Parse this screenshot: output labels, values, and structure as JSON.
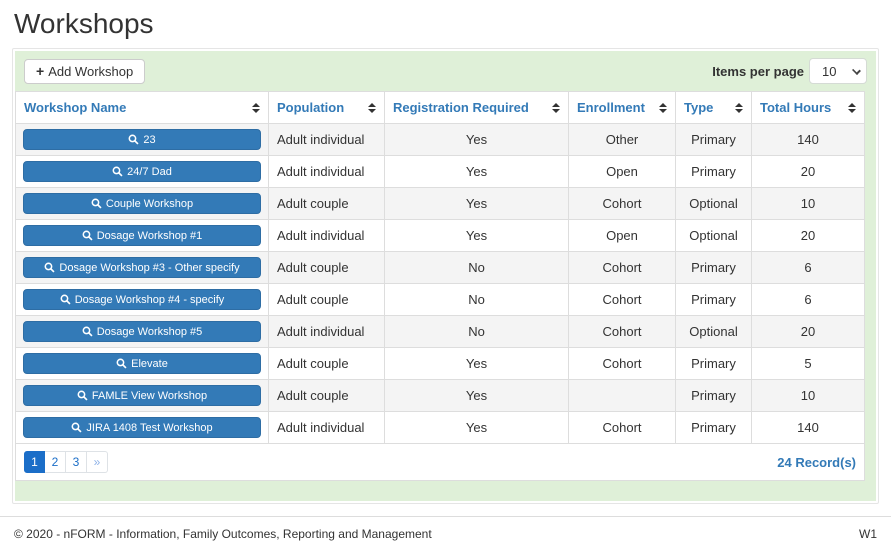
{
  "page": {
    "title": "Workshops"
  },
  "toolbar": {
    "add_button_label": "Add Workshop",
    "items_per_page_label": "Items per page",
    "items_per_page_value": "10"
  },
  "table": {
    "columns": [
      "Workshop Name",
      "Population",
      "Registration Required",
      "Enrollment",
      "Type",
      "Total Hours"
    ],
    "rows": [
      {
        "name": "23",
        "population": "Adult individual",
        "registration": "Yes",
        "enrollment": "Other",
        "type": "Primary",
        "hours": "140"
      },
      {
        "name": "24/7 Dad",
        "population": "Adult individual",
        "registration": "Yes",
        "enrollment": "Open",
        "type": "Primary",
        "hours": "20"
      },
      {
        "name": "Couple Workshop",
        "population": "Adult couple",
        "registration": "Yes",
        "enrollment": "Cohort",
        "type": "Optional",
        "hours": "10"
      },
      {
        "name": "Dosage Workshop #1",
        "population": "Adult individual",
        "registration": "Yes",
        "enrollment": "Open",
        "type": "Optional",
        "hours": "20"
      },
      {
        "name": "Dosage Workshop #3 - Other specify",
        "population": "Adult couple",
        "registration": "No",
        "enrollment": "Cohort",
        "type": "Primary",
        "hours": "6"
      },
      {
        "name": "Dosage Workshop #4 - specify",
        "population": "Adult couple",
        "registration": "No",
        "enrollment": "Cohort",
        "type": "Primary",
        "hours": "6"
      },
      {
        "name": "Dosage Workshop #5",
        "population": "Adult individual",
        "registration": "No",
        "enrollment": "Cohort",
        "type": "Optional",
        "hours": "20"
      },
      {
        "name": "Elevate",
        "population": "Adult couple",
        "registration": "Yes",
        "enrollment": "Cohort",
        "type": "Primary",
        "hours": "5"
      },
      {
        "name": "FAMLE View Workshop",
        "population": "Adult couple",
        "registration": "Yes",
        "enrollment": "",
        "type": "Primary",
        "hours": "10"
      },
      {
        "name": "JIRA 1408 Test Workshop",
        "population": "Adult individual",
        "registration": "Yes",
        "enrollment": "Cohort",
        "type": "Primary",
        "hours": "140"
      }
    ]
  },
  "pagination": {
    "pages": [
      "1",
      "2",
      "3"
    ],
    "active_page": "1",
    "next_label": "»",
    "records_label": "24 Record(s)"
  },
  "footer": {
    "copyright": "© 2020 - nFORM - Information, Family Outcomes, Reporting and Management",
    "environment": "W1"
  },
  "colors": {
    "panel_green": "#dff0d8",
    "header_blue": "#337ab7",
    "button_blue": "#337ab7",
    "button_blue_border": "#2e6da4",
    "pagination_blue": "#1b6ec8",
    "stripe_gray": "#f4f4f4",
    "border_gray": "#dddddd"
  }
}
